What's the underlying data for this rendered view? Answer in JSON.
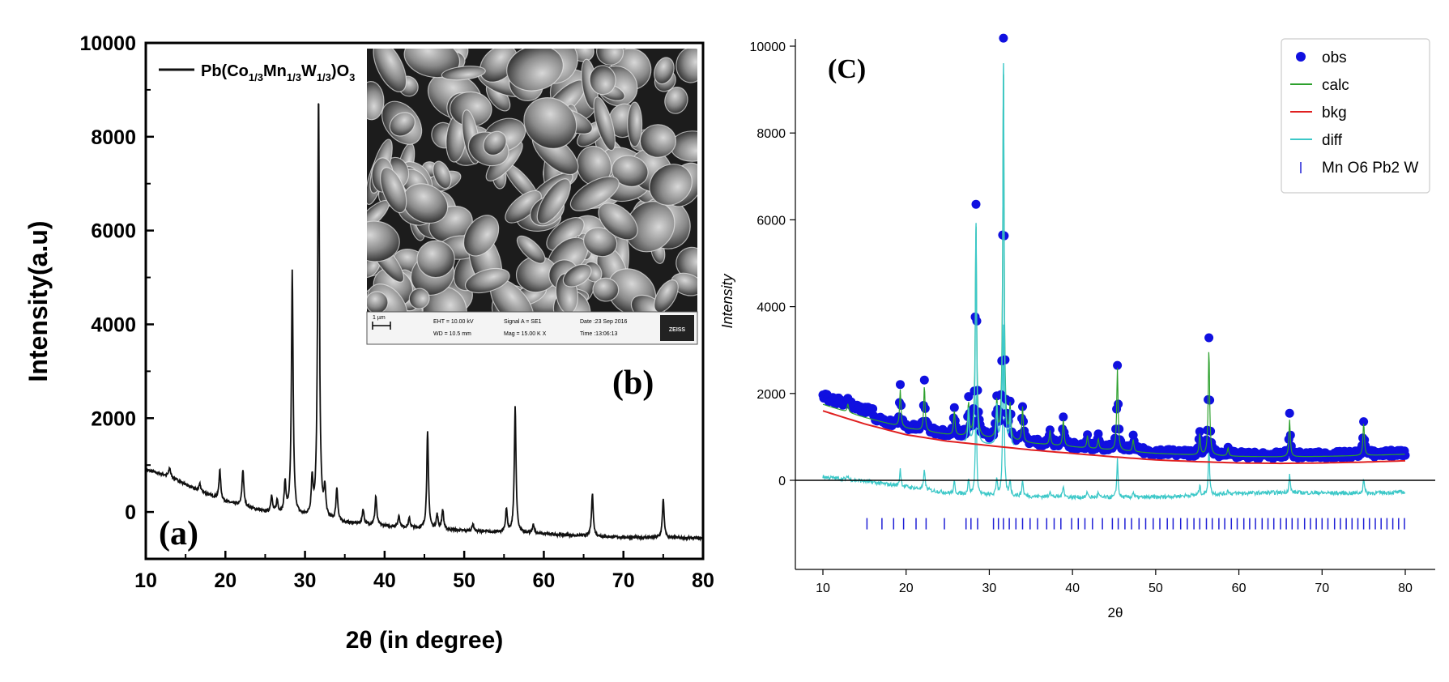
{
  "chart_data": [
    {
      "panel": "(a)",
      "type": "line",
      "xlabel": "2θ (in degree)",
      "ylabel": "Intensity(a.u)",
      "xlim": [
        10,
        80
      ],
      "ylim": [
        -1000,
        10000
      ],
      "xticks": [
        "10",
        "20",
        "30",
        "40",
        "50",
        "60",
        "70",
        "80"
      ],
      "yticks": [
        "0",
        "2000",
        "4000",
        "6000",
        "8000",
        "10000"
      ],
      "grid": false,
      "legend_position": "top-left",
      "series": [
        {
          "name": "Pb(Co1/3Mn1/3W1/3)O3",
          "legend_label": {
            "base": "Pb(Co",
            "s1": "1/3",
            "t1": "Mn",
            "s2": "1/3",
            "t2": "W",
            "s3": "1/3",
            "t3": ")O",
            "s4": "3"
          },
          "color": "#111111",
          "baseline": [
            [
              10,
              900
            ],
            [
              13,
              760
            ],
            [
              16,
              500
            ],
            [
              20,
              220
            ],
            [
              25,
              0
            ],
            [
              30,
              -110
            ],
            [
              35,
              -230
            ],
            [
              40,
              -300
            ],
            [
              45,
              -360
            ],
            [
              50,
              -400
            ],
            [
              55,
              -440
            ],
            [
              60,
              -470
            ],
            [
              65,
              -510
            ],
            [
              70,
              -540
            ],
            [
              75,
              -550
            ],
            [
              80,
              -560
            ]
          ],
          "peaks": [
            [
              13.0,
              180
            ],
            [
              16.8,
              150
            ],
            [
              19.3,
              620
            ],
            [
              22.2,
              780
            ],
            [
              25.8,
              350
            ],
            [
              26.5,
              260
            ],
            [
              27.5,
              650
            ],
            [
              28.4,
              5200
            ],
            [
              30.9,
              750
            ],
            [
              31.7,
              9000
            ],
            [
              32.5,
              600
            ],
            [
              34.0,
              700
            ],
            [
              37.3,
              320
            ],
            [
              38.9,
              620
            ],
            [
              41.8,
              250
            ],
            [
              43.1,
              200
            ],
            [
              45.4,
              2050
            ],
            [
              46.6,
              300
            ],
            [
              47.3,
              420
            ],
            [
              51.1,
              160
            ],
            [
              55.3,
              500
            ],
            [
              56.4,
              2700
            ],
            [
              58.7,
              200
            ],
            [
              66.1,
              900
            ],
            [
              75.0,
              840
            ]
          ]
        }
      ]
    },
    {
      "panel": "(b)",
      "type": "image",
      "image": "SEM micrograph",
      "scale_label": "1 µm",
      "info": {
        "eht": "EHT = 10.00 kV",
        "wd": "WD = 10.5 mm",
        "signal": "Signal A = SE1",
        "mag": "Mag = 15.00 K X",
        "date": "Date :23 Sep 2016",
        "time": "Time :13:06:13",
        "brand": "ZEISS"
      }
    },
    {
      "panel": "(C)",
      "type": "scatter",
      "xlabel": "2θ",
      "ylabel": "Intensity",
      "xlim": [
        6.5,
        84
      ],
      "ylim": [
        -2000,
        10300
      ],
      "xticks": [
        "10",
        "20",
        "30",
        "40",
        "50",
        "60",
        "70",
        "80"
      ],
      "yticks": [
        "0",
        "2000",
        "4000",
        "6000",
        "8000",
        "10000"
      ],
      "grid": false,
      "legend_position": "top-right",
      "zero_line": true,
      "series": [
        {
          "name": "obs",
          "marker": "circle",
          "color": "#1010e0"
        },
        {
          "name": "calc",
          "marker": "line",
          "color": "#2ca02c"
        },
        {
          "name": "bkg",
          "marker": "line",
          "color": "#e02020",
          "points": [
            [
              10,
              1600
            ],
            [
              15,
              1300
            ],
            [
              20,
              1050
            ],
            [
              25,
              900
            ],
            [
              30,
              800
            ],
            [
              35,
              700
            ],
            [
              40,
              620
            ],
            [
              45,
              540
            ],
            [
              50,
              470
            ],
            [
              55,
              430
            ],
            [
              60,
              400
            ],
            [
              65,
              390
            ],
            [
              70,
              400
            ],
            [
              75,
              420
            ],
            [
              80,
              450
            ]
          ]
        },
        {
          "name": "diff",
          "marker": "line",
          "color": "#3cc8c8"
        },
        {
          "name": "Mn O6 Pb2 W",
          "marker": "tick",
          "color": "#1f1fd6",
          "tick_y": -1000,
          "ticks_x": [
            15.3,
            17.1,
            18.5,
            19.7,
            21.2,
            22.4,
            24.6,
            27.2,
            27.8,
            28.6,
            30.5,
            31.1,
            31.7,
            32.4,
            33.2,
            34.0,
            34.9,
            35.8,
            36.9,
            37.8,
            38.6,
            39.9,
            40.7,
            41.5,
            42.4,
            43.6,
            44.8,
            45.5,
            46.3,
            47.1,
            48.0,
            48.8,
            49.7,
            50.5,
            51.4,
            52.1,
            53.0,
            53.8,
            54.6,
            55.3,
            56.1,
            56.8,
            57.6,
            58.3,
            59.1,
            59.8,
            60.6,
            61.3,
            62.0,
            62.8,
            63.5,
            64.2,
            65.0,
            65.7,
            66.4,
            67.1,
            67.9,
            68.6,
            69.3,
            70.0,
            70.7,
            71.5,
            72.2,
            72.9,
            73.6,
            74.3,
            75.0,
            75.7,
            76.4,
            77.1,
            77.8,
            78.5,
            79.2,
            79.9
          ]
        }
      ],
      "obs_peaks": [
        [
          13.0,
          200
        ],
        [
          19.3,
          900
        ],
        [
          22.2,
          1100
        ],
        [
          25.8,
          600
        ],
        [
          27.5,
          800
        ],
        [
          28.4,
          5300
        ],
        [
          30.9,
          900
        ],
        [
          31.7,
          9200
        ],
        [
          32.5,
          800
        ],
        [
          34.0,
          850
        ],
        [
          37.3,
          350
        ],
        [
          38.9,
          650
        ],
        [
          41.8,
          300
        ],
        [
          43.1,
          250
        ],
        [
          45.4,
          2000
        ],
        [
          47.3,
          300
        ],
        [
          55.3,
          500
        ],
        [
          56.4,
          2600
        ],
        [
          58.7,
          200
        ],
        [
          66.1,
          900
        ],
        [
          75.0,
          800
        ]
      ],
      "diff_baseline": [
        [
          10,
          80
        ],
        [
          15,
          -20
        ],
        [
          20,
          -150
        ],
        [
          25,
          -290
        ],
        [
          30,
          -350
        ],
        [
          35,
          -370
        ],
        [
          40,
          -390
        ],
        [
          45,
          -400
        ],
        [
          50,
          -390
        ],
        [
          55,
          -340
        ],
        [
          60,
          -300
        ],
        [
          65,
          -280
        ],
        [
          70,
          -290
        ],
        [
          75,
          -300
        ],
        [
          80,
          -270
        ]
      ],
      "panel_label": "(C)"
    }
  ]
}
